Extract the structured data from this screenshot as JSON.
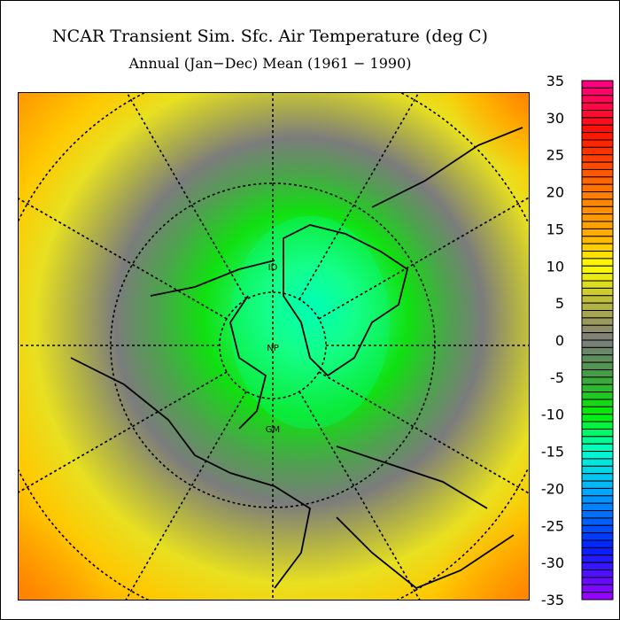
{
  "title": "NCAR Transient Sim. Sfc. Air Temperature (deg C)",
  "subtitle": "Annual (Jan−Dec) Mean (1961 − 1990)",
  "map": {
    "projection": "north polar stereographic",
    "labels": {
      "international_dateline": "ID",
      "north_pole": "NP",
      "greenwich_meridian": "GM"
    },
    "field_colors": {
      "center": "#00ffd0",
      "ring_green": "#10e010",
      "ring_gray": "#7c7c7c",
      "midlat_yellow": "#e8e020",
      "outer_orange": "#ffa000"
    }
  },
  "colorbar": {
    "min": -35,
    "max": 35,
    "step": 1,
    "tick_labels": [
      "35",
      "30",
      "25",
      "20",
      "15",
      "10",
      "5",
      "0",
      "-5",
      "-10",
      "-15",
      "-20",
      "-25",
      "-30",
      "-35"
    ],
    "color_stops": [
      {
        "value": 35,
        "color": "#ff0088"
      },
      {
        "value": 28,
        "color": "#ff1000"
      },
      {
        "value": 20,
        "color": "#ff7800"
      },
      {
        "value": 14,
        "color": "#ffb000"
      },
      {
        "value": 10,
        "color": "#ffff00"
      },
      {
        "value": 5,
        "color": "#b8b840"
      },
      {
        "value": 0,
        "color": "#7c7c7c"
      },
      {
        "value": -5,
        "color": "#40a040"
      },
      {
        "value": -10,
        "color": "#00f000"
      },
      {
        "value": -15,
        "color": "#00ffd0"
      },
      {
        "value": -20,
        "color": "#00b0ff"
      },
      {
        "value": -28,
        "color": "#0020ff"
      },
      {
        "value": -35,
        "color": "#a000ff"
      }
    ]
  }
}
